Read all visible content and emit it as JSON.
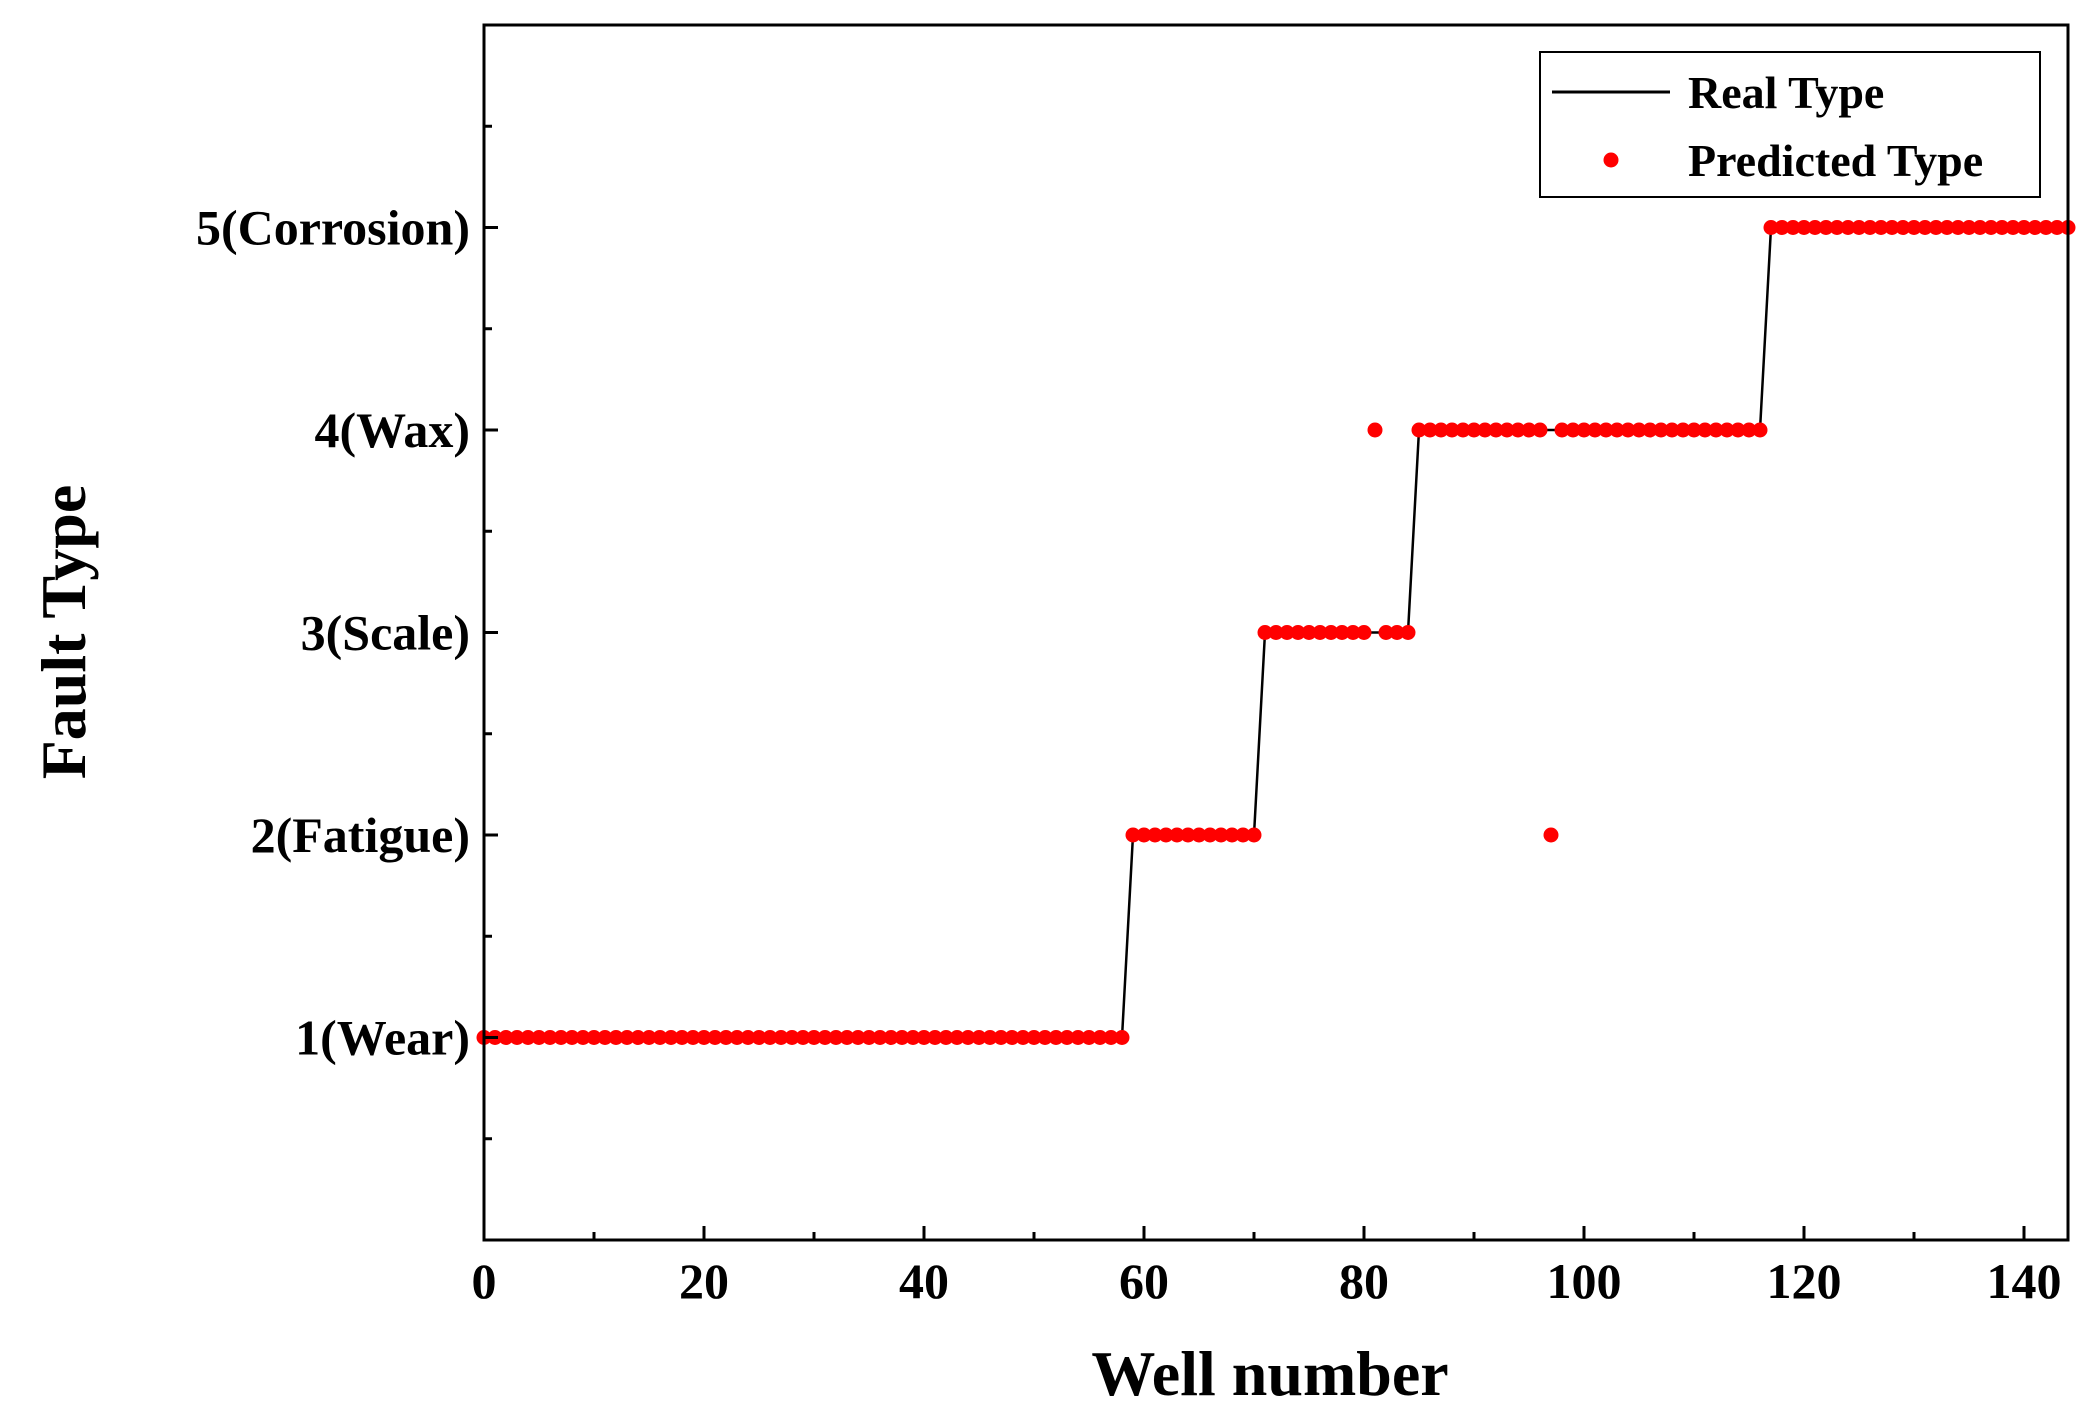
{
  "chart_data": {
    "type": "line+scatter",
    "xlabel": "Well number",
    "ylabel": "Fault Type",
    "xlim": [
      0,
      144
    ],
    "ylim": [
      0,
      6
    ],
    "x_ticks": [
      0,
      20,
      40,
      60,
      80,
      100,
      120,
      140
    ],
    "x_tick_labels": [
      "0",
      "20",
      "40",
      "60",
      "80",
      "100",
      "120",
      "140"
    ],
    "y_ticks": [
      1,
      2,
      3,
      4,
      5
    ],
    "y_tick_labels": [
      "1(Wear)",
      "2(Fatigue)",
      "3(Scale)",
      "4(Wax)",
      "5(Corrosion)"
    ],
    "legend_position": "top-right",
    "colors": {
      "real": "#000000",
      "predicted": "#ff0000"
    },
    "series": [
      {
        "name": "Real Type",
        "style": "line",
        "segments": [
          {
            "x_start": 0,
            "x_end": 58,
            "value": 1
          },
          {
            "x_start": 59,
            "x_end": 70,
            "value": 2
          },
          {
            "x_start": 71,
            "x_end": 84,
            "value": 3
          },
          {
            "x_start": 85,
            "x_end": 116,
            "value": 4
          },
          {
            "x_start": 117,
            "x_end": 144,
            "value": 5
          }
        ]
      },
      {
        "name": "Predicted Type",
        "style": "scatter",
        "segments": [
          {
            "x_start": 0,
            "x_end": 58,
            "value": 1
          },
          {
            "x_start": 59,
            "x_end": 70,
            "value": 2
          },
          {
            "x_start": 71,
            "x_end": 80,
            "value": 3
          },
          {
            "x_start": 82,
            "x_end": 84,
            "value": 3
          },
          {
            "x_start": 85,
            "x_end": 96,
            "value": 4
          },
          {
            "x_start": 98,
            "x_end": 116,
            "value": 4
          },
          {
            "x_start": 117,
            "x_end": 144,
            "value": 5
          }
        ],
        "outliers": [
          {
            "x": 81,
            "y": 4
          },
          {
            "x": 97,
            "y": 2
          }
        ]
      }
    ]
  }
}
